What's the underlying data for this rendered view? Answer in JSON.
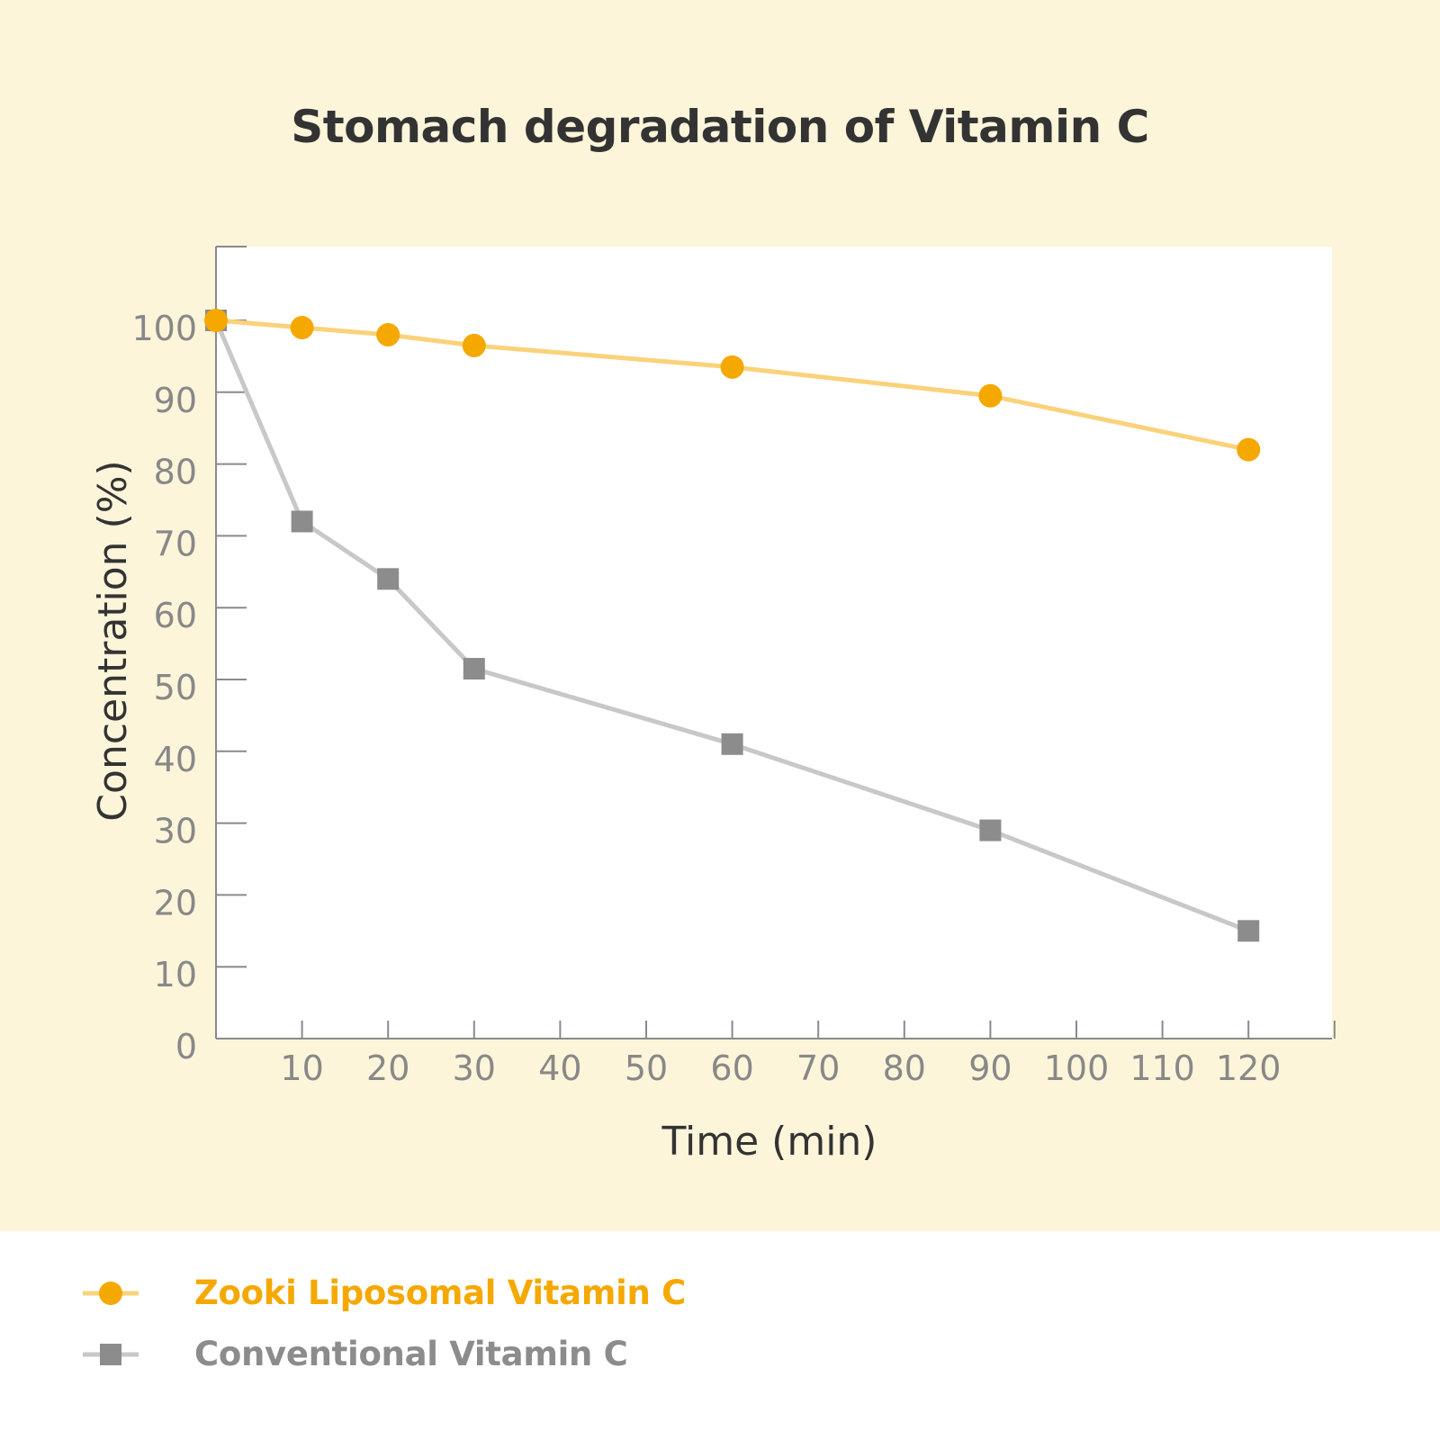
{
  "colors": {
    "background_top": "#FCF5DA",
    "background_bottom": "#FFFFFF",
    "plot_background": "#FFFFFF",
    "axis": "#8A8A8A",
    "tick_label": "#888888",
    "title": "#333333",
    "zooki_marker": "#F5A800",
    "zooki_line": "#FAD27A",
    "conventional_marker": "#8C8C8C",
    "conventional_line": "#C8C8C8"
  },
  "chart_data": {
    "type": "line",
    "title": "Stomach degradation of Vitamin C",
    "xlabel": "Time (min)",
    "ylabel": "Concentration (%)",
    "xlim": [
      0,
      130
    ],
    "ylim": [
      0,
      110
    ],
    "x_ticks": [
      10,
      20,
      30,
      40,
      50,
      60,
      70,
      80,
      90,
      100,
      110,
      120
    ],
    "y_ticks": [
      0,
      10,
      20,
      30,
      40,
      50,
      60,
      70,
      80,
      90,
      100
    ],
    "grid": false,
    "legend_position": "bottom-left",
    "series": [
      {
        "name": "Zooki Liposomal Vitamin C",
        "marker": "circle",
        "x": [
          0,
          10,
          20,
          30,
          60,
          90,
          120
        ],
        "values": [
          100,
          99,
          98,
          96.5,
          93.5,
          89.5,
          82
        ]
      },
      {
        "name": "Conventional Vitamin C",
        "marker": "square",
        "x": [
          0,
          10,
          20,
          30,
          60,
          90,
          120
        ],
        "values": [
          100,
          72,
          64,
          51.5,
          41,
          29,
          15
        ]
      }
    ]
  },
  "legend": {
    "items": [
      {
        "label": "Zooki Liposomal Vitamin C",
        "icon": "circle-marker-icon"
      },
      {
        "label": "Conventional Vitamin C",
        "icon": "square-marker-icon"
      }
    ]
  }
}
